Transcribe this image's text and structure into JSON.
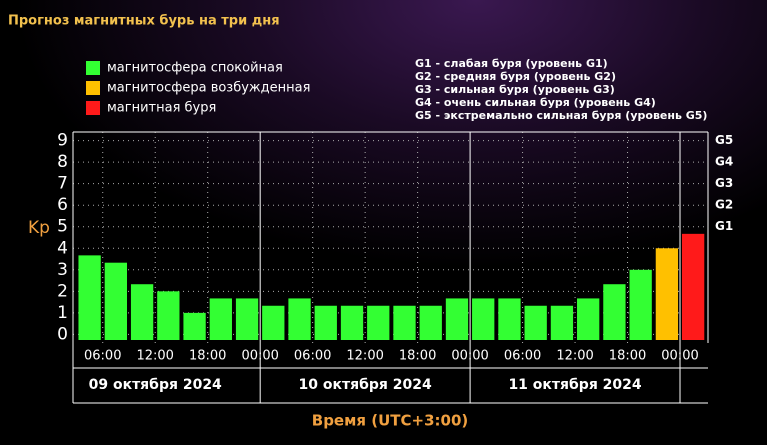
{
  "chart_data": {
    "type": "bar",
    "title": "Прогноз магнитных бурь на три дня",
    "ylabel": "Kp",
    "xlabel": "Время (UTC+3:00)",
    "legend": [
      {
        "name": "магнитосфера спокойная",
        "color": "#33ff33"
      },
      {
        "name": "магнитосфера возбужденная",
        "color": "#ffc000"
      },
      {
        "name": "магнитная буря",
        "color": "#ff1a1a"
      }
    ],
    "storm_levels": [
      "G1 - слабая буря (уровень G1)",
      "G2 - средняя буря (уровень G2)",
      "G3 - сильная буря (уровень G3)",
      "G4 - очень сильная буря (уровень G4)",
      "G5 - экстремально сильная буря (уровень G5)"
    ],
    "days": [
      "09 октября 2024",
      "10 октября 2024",
      "11 октября 2024"
    ],
    "x": [
      4.5,
      7.5,
      10.5,
      13.5,
      16.5,
      19.5,
      22.5,
      25.5,
      28.5,
      31.5,
      34.5,
      37.5,
      40.5,
      43.5,
      46.5,
      49.5,
      52.5,
      55.5,
      58.5,
      61.5,
      64.5,
      67.5,
      70.5,
      73.5
    ],
    "values": [
      3.67,
      3.33,
      2.33,
      2.0,
      1.0,
      1.67,
      1.67,
      1.33,
      1.67,
      1.33,
      1.33,
      1.33,
      1.33,
      1.33,
      1.67,
      1.67,
      1.67,
      1.33,
      1.33,
      1.67,
      2.33,
      3.0,
      4.0,
      4.67
    ],
    "colors": [
      "#33ff33",
      "#33ff33",
      "#33ff33",
      "#33ff33",
      "#33ff33",
      "#33ff33",
      "#33ff33",
      "#33ff33",
      "#33ff33",
      "#33ff33",
      "#33ff33",
      "#33ff33",
      "#33ff33",
      "#33ff33",
      "#33ff33",
      "#33ff33",
      "#33ff33",
      "#33ff33",
      "#33ff33",
      "#33ff33",
      "#33ff33",
      "#33ff33",
      "#ffc000",
      "#ff1a1a"
    ],
    "xlim": [
      2.6,
      75.2
    ],
    "xticks": [
      {
        "value": 6,
        "label": "06:00"
      },
      {
        "value": 12,
        "label": "12:00"
      },
      {
        "value": 18,
        "label": "18:00"
      },
      {
        "value": 24,
        "label": "00:00"
      },
      {
        "value": 30,
        "label": "06:00"
      },
      {
        "value": 36,
        "label": "12:00"
      },
      {
        "value": 42,
        "label": "18:00"
      },
      {
        "value": 48,
        "label": "00:00"
      },
      {
        "value": 54,
        "label": "06:00"
      },
      {
        "value": 60,
        "label": "12:00"
      },
      {
        "value": 66,
        "label": "18:00"
      },
      {
        "value": 72,
        "label": "00:00"
      }
    ],
    "ylim": [
      -0.4,
      9.4
    ],
    "yticks": [
      0,
      1,
      2,
      3,
      4,
      5,
      6,
      7,
      8,
      9
    ],
    "y2lim": [
      -0.4,
      9.4
    ],
    "y2ticks": [
      {
        "value": 5,
        "label": "G1"
      },
      {
        "value": 6,
        "label": "G2"
      },
      {
        "value": 7,
        "label": "G3"
      },
      {
        "value": 8,
        "label": "G4"
      },
      {
        "value": 9,
        "label": "G5"
      }
    ],
    "grid": true
  }
}
